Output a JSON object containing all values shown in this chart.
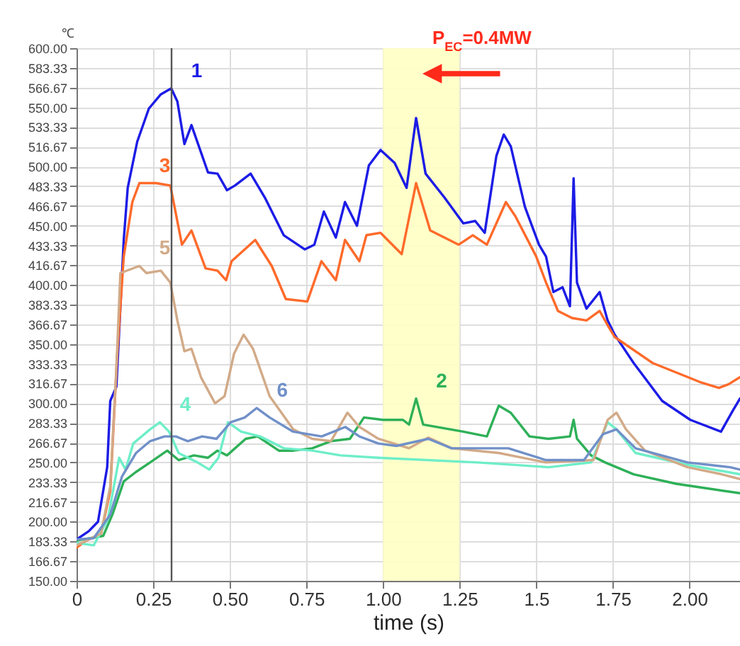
{
  "chart_data": {
    "type": "line",
    "xlabel": "time (s)",
    "ylabel": "℃",
    "xlim": [
      0,
      2.165
    ],
    "ylim": [
      150,
      600
    ],
    "xticks": [
      0,
      0.25,
      {
        "value": 0.5,
        "label": "0.50"
      },
      0.75,
      {
        "value": 1,
        "label": "1.00"
      },
      1.25,
      1.5,
      1.75,
      {
        "value": 2,
        "label": "2.00"
      }
    ],
    "yticks": [
      {
        "value": 150,
        "label": "150.00"
      },
      {
        "value": 166.67,
        "label": "166.67"
      },
      {
        "value": 183.33,
        "label": "183.33"
      },
      {
        "value": 200,
        "label": "200.00"
      },
      {
        "value": 216.67,
        "label": "216.67"
      },
      {
        "value": 233.33,
        "label": "233.33"
      },
      {
        "value": 250,
        "label": "250.00"
      },
      {
        "value": 266.67,
        "label": "266.67"
      },
      {
        "value": 283.33,
        "label": "283.33"
      },
      {
        "value": 300,
        "label": "300.00"
      },
      {
        "value": 316.67,
        "label": "316.67"
      },
      {
        "value": 333.33,
        "label": "333.33"
      },
      {
        "value": 350,
        "label": "350.00"
      },
      {
        "value": 366.67,
        "label": "366.67"
      },
      {
        "value": 383.33,
        "label": "383.33"
      },
      {
        "value": 400,
        "label": "400.00"
      },
      {
        "value": 416.67,
        "label": "416.67"
      },
      {
        "value": 433.33,
        "label": "433.33"
      },
      {
        "value": 450,
        "label": "450.00"
      },
      {
        "value": 466.67,
        "label": "466.67"
      },
      {
        "value": 483.33,
        "label": "483.33"
      },
      {
        "value": 500,
        "label": "500.00"
      },
      {
        "value": 516.67,
        "label": "516.67"
      },
      {
        "value": 533.33,
        "label": "533.33"
      },
      {
        "value": 550,
        "label": "550.00"
      },
      {
        "value": 566.67,
        "label": "566.67"
      },
      {
        "value": 583.33,
        "label": "583.33"
      },
      {
        "value": 600,
        "label": "600.00"
      }
    ],
    "grid": true,
    "series": [
      {
        "name": "1",
        "color": "#1c1ce6",
        "x": [
          0,
          0.04,
          0.07,
          0.1,
          0.11,
          0.13,
          0.154,
          0.167,
          0.198,
          0.236,
          0.275,
          0.309,
          0.329,
          0.352,
          0.375,
          0.429,
          0.46,
          0.491,
          0.517,
          0.568,
          0.614,
          0.676,
          0.745,
          0.776,
          0.807,
          0.846,
          0.876,
          0.915,
          0.954,
          0.992,
          1.038,
          1.077,
          1.108,
          1.139,
          1.2,
          1.262,
          1.301,
          1.332,
          1.37,
          1.394,
          1.417,
          1.463,
          1.509,
          1.532,
          1.556,
          1.586,
          1.61,
          1.622,
          1.633,
          1.664,
          1.707,
          1.733,
          1.756,
          1.818,
          1.911,
          2.003,
          2.103,
          2.142,
          2.165
        ],
        "values": [
          185,
          192,
          200,
          246,
          302,
          314,
          438,
          482,
          521,
          549,
          561,
          566,
          555,
          519,
          535,
          495,
          494,
          480,
          484,
          494,
          474,
          442,
          430,
          434,
          462,
          440,
          470,
          450,
          501,
          514,
          503,
          482,
          541,
          494,
          474,
          452,
          454,
          444,
          509,
          527,
          517,
          466,
          434,
          424,
          394,
          398,
          382,
          490,
          402,
          380,
          394,
          370,
          358,
          334,
          302,
          286,
          276,
          294,
          304
        ]
      },
      {
        "name": "2",
        "color": "#2eb058",
        "x": [
          0,
          0.087,
          0.117,
          0.154,
          0.194,
          0.24,
          0.296,
          0.333,
          0.383,
          0.429,
          0.46,
          0.491,
          0.552,
          0.591,
          0.66,
          0.707,
          0.769,
          0.83,
          0.892,
          0.938,
          1.0,
          1.065,
          1.085,
          1.108,
          1.131,
          1.262,
          1.339,
          1.378,
          1.417,
          1.478,
          1.54,
          1.61,
          1.622,
          1.633,
          1.679,
          1.725,
          1.818,
          1.957,
          2.165
        ],
        "values": [
          184,
          188,
          206,
          234,
          242,
          250,
          260,
          252,
          256,
          254,
          260,
          256,
          270,
          272,
          260,
          260,
          262,
          268,
          270,
          288,
          286,
          286,
          282,
          304,
          282,
          276,
          272,
          298,
          292,
          272,
          270,
          272,
          286,
          270,
          256,
          250,
          240,
          232,
          224
        ]
      },
      {
        "name": "3",
        "color": "#ff6a2a",
        "x": [
          0,
          0.032,
          0.08,
          0.11,
          0.132,
          0.154,
          0.182,
          0.205,
          0.259,
          0.306,
          0.344,
          0.375,
          0.421,
          0.46,
          0.488,
          0.506,
          0.583,
          0.637,
          0.683,
          0.753,
          0.799,
          0.846,
          0.876,
          0.923,
          0.946,
          0.992,
          1.061,
          1.108,
          1.154,
          1.247,
          1.293,
          1.339,
          1.401,
          1.432,
          1.5,
          1.532,
          1.571,
          1.617,
          1.664,
          1.707,
          1.733,
          1.756,
          1.88,
          2.034,
          2.096,
          2.127,
          2.165
        ],
        "values": [
          178,
          184,
          190,
          226,
          338,
          424,
          470,
          486,
          486,
          484,
          434,
          446,
          414,
          412,
          404,
          420,
          438,
          416,
          388,
          386,
          420,
          404,
          438,
          420,
          442,
          444,
          426,
          486,
          446,
          434,
          442,
          434,
          470,
          458,
          424,
          402,
          378,
          372,
          370,
          378,
          366,
          356,
          334,
          318,
          313,
          316,
          322
        ]
      },
      {
        "name": "4",
        "color": "#6eeec8",
        "x": [
          0,
          0.056,
          0.102,
          0.139,
          0.16,
          0.185,
          0.24,
          0.272,
          0.302,
          0.333,
          0.395,
          0.433,
          0.463,
          0.494,
          0.537,
          0.599,
          0.676,
          0.769,
          0.861,
          0.985,
          1.309,
          1.54,
          1.679,
          1.733,
          1.762,
          1.824,
          1.994,
          2.165
        ],
        "values": [
          182,
          180,
          202,
          254,
          244,
          266,
          278,
          284,
          276,
          258,
          250,
          244,
          254,
          284,
          276,
          272,
          262,
          260,
          256,
          254,
          250,
          246,
          250,
          284,
          278,
          258,
          248,
          240
        ]
      },
      {
        "name": "5",
        "color": "#d2aa88",
        "x": [
          0,
          0.08,
          0.11,
          0.13,
          0.143,
          0.205,
          0.228,
          0.275,
          0.306,
          0.329,
          0.352,
          0.375,
          0.406,
          0.452,
          0.483,
          0.514,
          0.545,
          0.576,
          0.63,
          0.707,
          0.769,
          0.83,
          0.884,
          0.923,
          0.985,
          1.085,
          1.148,
          1.224,
          1.378,
          1.532,
          1.687,
          1.733,
          1.762,
          1.793,
          1.855,
          1.994,
          2.105,
          2.165
        ],
        "values": [
          180,
          190,
          230,
          330,
          410,
          416,
          410,
          412,
          402,
          370,
          344,
          346,
          322,
          300,
          306,
          342,
          358,
          346,
          306,
          278,
          270,
          268,
          292,
          280,
          270,
          262,
          271,
          262,
          258,
          250,
          252,
          286,
          292,
          278,
          260,
          246,
          240,
          236
        ]
      },
      {
        "name": "6",
        "color": "#7090c8",
        "x": [
          0,
          0.056,
          0.11,
          0.148,
          0.194,
          0.24,
          0.287,
          0.324,
          0.363,
          0.41,
          0.457,
          0.503,
          0.549,
          0.588,
          0.63,
          0.707,
          0.8,
          0.877,
          0.923,
          0.985,
          1.044,
          1.148,
          1.224,
          1.409,
          1.532,
          1.656,
          1.718,
          1.762,
          1.824,
          1.994,
          2.133,
          2.165
        ],
        "values": [
          185,
          186,
          206,
          238,
          258,
          268,
          272,
          272,
          268,
          272,
          270,
          284,
          288,
          296,
          288,
          276,
          272,
          280,
          272,
          266,
          264,
          270,
          262,
          262,
          252,
          252,
          274,
          278,
          262,
          250,
          246,
          244
        ]
      }
    ],
    "ref_lines": [
      {
        "axis": "x",
        "value": 0.31,
        "color": "#555555"
      }
    ],
    "bands": [
      {
        "axis": "x",
        "from": 1.0,
        "to": 1.25,
        "color": "#ffffc4"
      }
    ],
    "annotations": [
      "P$_{EC}$=0.4MW"
    ]
  }
}
